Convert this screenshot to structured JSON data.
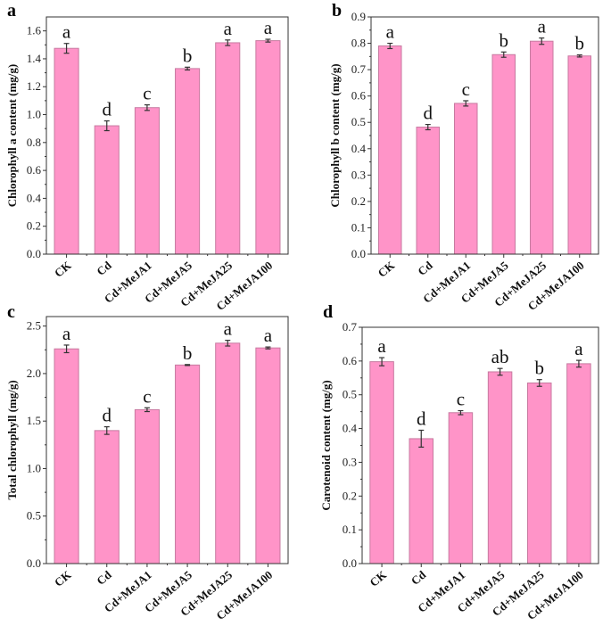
{
  "chart_data": [
    {
      "type": "bar",
      "panel": "a",
      "ylabel": "Chlorophyll a content (mg/g)",
      "ylim": [
        0,
        1.7
      ],
      "yticks": [
        0.0,
        0.2,
        0.4,
        0.6,
        0.8,
        1.0,
        1.2,
        1.4,
        1.6
      ],
      "tick_decimals": 1,
      "categories": [
        "CK",
        "Cd",
        "Cd+MeJA1",
        "Cd+MeJA5",
        "Cd+MeJA25",
        "Cd+MeJA100"
      ],
      "values": [
        1.475,
        0.92,
        1.05,
        1.33,
        1.515,
        1.53
      ],
      "errors": [
        0.035,
        0.035,
        0.02,
        0.01,
        0.02,
        0.01
      ],
      "significance": [
        "a",
        "d",
        "c",
        "b",
        "a",
        "a"
      ]
    },
    {
      "type": "bar",
      "panel": "b",
      "ylabel": "Chlorophyll b content (mg/g)",
      "ylim": [
        0,
        0.9
      ],
      "yticks": [
        0.0,
        0.1,
        0.2,
        0.3,
        0.4,
        0.5,
        0.6,
        0.7,
        0.8,
        0.9
      ],
      "tick_decimals": 1,
      "categories": [
        "CK",
        "Cd",
        "Cd+MeJA1",
        "Cd+MeJA5",
        "Cd+MeJA25",
        "Cd+MeJA100"
      ],
      "values": [
        0.79,
        0.482,
        0.572,
        0.757,
        0.808,
        0.752
      ],
      "errors": [
        0.01,
        0.01,
        0.01,
        0.01,
        0.012,
        0.004
      ],
      "significance": [
        "a",
        "d",
        "c",
        "b",
        "a",
        "b"
      ]
    },
    {
      "type": "bar",
      "panel": "c",
      "ylabel": "Total chlorophyll (mg/g)",
      "ylim": [
        0,
        2.6
      ],
      "yticks": [
        0.0,
        0.5,
        1.0,
        1.5,
        2.0,
        2.5
      ],
      "tick_decimals": 1,
      "categories": [
        "CK",
        "Cd",
        "Cd+MeJA1",
        "Cd+MeJA5",
        "Cd+MeJA25",
        "Cd+MeJA100"
      ],
      "values": [
        2.26,
        1.4,
        1.62,
        2.09,
        2.32,
        2.27
      ],
      "errors": [
        0.04,
        0.04,
        0.02,
        0.005,
        0.03,
        0.01
      ],
      "significance": [
        "a",
        "d",
        "c",
        "b",
        "a",
        "a"
      ]
    },
    {
      "type": "bar",
      "panel": "d",
      "ylabel": "Carotenoid content (mg/g)",
      "ylim": [
        0,
        0.7
      ],
      "yticks": [
        0.0,
        0.1,
        0.2,
        0.3,
        0.4,
        0.5,
        0.6,
        0.7
      ],
      "tick_decimals": 1,
      "categories": [
        "CK",
        "Cd",
        "Cd+MeJA1",
        "Cd+MeJA5",
        "Cd+MeJA25",
        "Cd+MeJA100"
      ],
      "values": [
        0.598,
        0.37,
        0.447,
        0.568,
        0.535,
        0.592
      ],
      "errors": [
        0.012,
        0.025,
        0.006,
        0.01,
        0.01,
        0.01
      ],
      "significance": [
        "a",
        "d",
        "c",
        "ab",
        "b",
        "a"
      ]
    }
  ],
  "colors": {
    "bar": "#ff94c8",
    "bar_edge": "#c77aa0",
    "axis": "#333333"
  }
}
